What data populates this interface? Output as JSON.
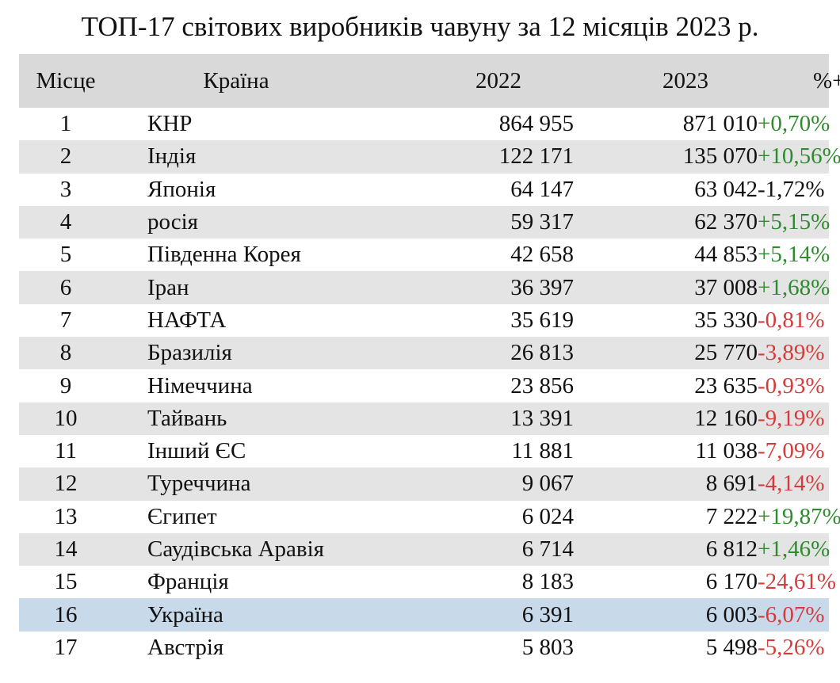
{
  "title": "ТОП-17 світових виробників чавуну за 12 місяців 2023 р.",
  "columns": {
    "rank": "Місце",
    "country": "Країна",
    "y2022": "2022",
    "y2023": "2023",
    "change": "%+/-"
  },
  "colors": {
    "positive": "#2e8b2e",
    "negative": "#d43c3c",
    "neutral": "#111111",
    "highlight_row": "#c8d9ea",
    "shade_row": "#e4e4e4",
    "header_row": "#d9d9d9"
  },
  "chart_data": {
    "type": "table",
    "title": "ТОП-17 світових виробників чавуну за 12 місяців 2023 р.",
    "headers": [
      "Місце",
      "Країна",
      "2022",
      "2023",
      "%+/-"
    ],
    "rows": [
      {
        "rank": "1",
        "country": "КНР",
        "y2022": "864 955",
        "y2023": "871 010",
        "change": "+0,70%",
        "trend": "pos"
      },
      {
        "rank": "2",
        "country": "Індія",
        "y2022": "122 171",
        "y2023": "135 070",
        "change": "+10,56%",
        "trend": "pos"
      },
      {
        "rank": "3",
        "country": "Японія",
        "y2022": "64 147",
        "y2023": "63 042",
        "change": "-1,72%",
        "trend": "neutral"
      },
      {
        "rank": "4",
        "country": "росія",
        "y2022": "59 317",
        "y2023": "62 370",
        "change": "+5,15%",
        "trend": "pos"
      },
      {
        "rank": "5",
        "country": "Південна Корея",
        "y2022": "42 658",
        "y2023": "44 853",
        "change": "+5,14%",
        "trend": "pos"
      },
      {
        "rank": "6",
        "country": "Іран",
        "y2022": "36 397",
        "y2023": "37 008",
        "change": "+1,68%",
        "trend": "pos"
      },
      {
        "rank": "7",
        "country": "НАФТА",
        "y2022": "35 619",
        "y2023": "35 330",
        "change": "-0,81%",
        "trend": "neg"
      },
      {
        "rank": "8",
        "country": "Бразилія",
        "y2022": "26 813",
        "y2023": "25 770",
        "change": "-3,89%",
        "trend": "neg"
      },
      {
        "rank": "9",
        "country": "Німеччина",
        "y2022": "23 856",
        "y2023": "23 635",
        "change": "-0,93%",
        "trend": "neg"
      },
      {
        "rank": "10",
        "country": "Тайвань",
        "y2022": "13 391",
        "y2023": "12 160",
        "change": "-9,19%",
        "trend": "neg"
      },
      {
        "rank": "11",
        "country": "Інший ЄС",
        "y2022": "11 881",
        "y2023": "11 038",
        "change": "-7,09%",
        "trend": "neg"
      },
      {
        "rank": "12",
        "country": "Туреччина",
        "y2022": "9 067",
        "y2023": "8 691",
        "change": "-4,14%",
        "trend": "neg"
      },
      {
        "rank": "13",
        "country": "Єгипет",
        "y2022": "6 024",
        "y2023": "7 222",
        "change": "+19,87%",
        "trend": "pos"
      },
      {
        "rank": "14",
        "country": "Саудівська Аравія",
        "y2022": "6 714",
        "y2023": "6 812",
        "change": "+1,46%",
        "trend": "pos"
      },
      {
        "rank": "15",
        "country": "Франція",
        "y2022": "8 183",
        "y2023": "6 170",
        "change": "-24,61%",
        "trend": "neg"
      },
      {
        "rank": "16",
        "country": "Україна",
        "y2022": "6 391",
        "y2023": "6 003",
        "change": "-6,07%",
        "trend": "neg",
        "highlight": true
      },
      {
        "rank": "17",
        "country": "Австрія",
        "y2022": "5 803",
        "y2023": "5 498",
        "change": "-5,26%",
        "trend": "neg"
      }
    ]
  }
}
